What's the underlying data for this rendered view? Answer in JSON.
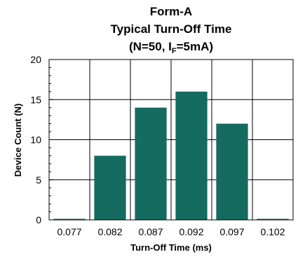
{
  "chart_data": {
    "type": "bar",
    "title_lines": [
      "Form-A",
      "Typical Turn-Off Time"
    ],
    "subtitle": {
      "prefix": "(N=50, I",
      "subscript": "F",
      "suffix": "=5mA)"
    },
    "xlabel": "Turn-Off Time (ms)",
    "ylabel": "Device Count (N)",
    "categories": [
      "0.077",
      "0.082",
      "0.087",
      "0.092",
      "0.097",
      "0.102"
    ],
    "values": [
      0,
      8,
      14,
      16,
      12,
      0
    ],
    "ylim": [
      0,
      20
    ],
    "yticks": [
      "0",
      "5",
      "10",
      "15",
      "20"
    ],
    "grid": true,
    "bar_color": "#156b60"
  }
}
